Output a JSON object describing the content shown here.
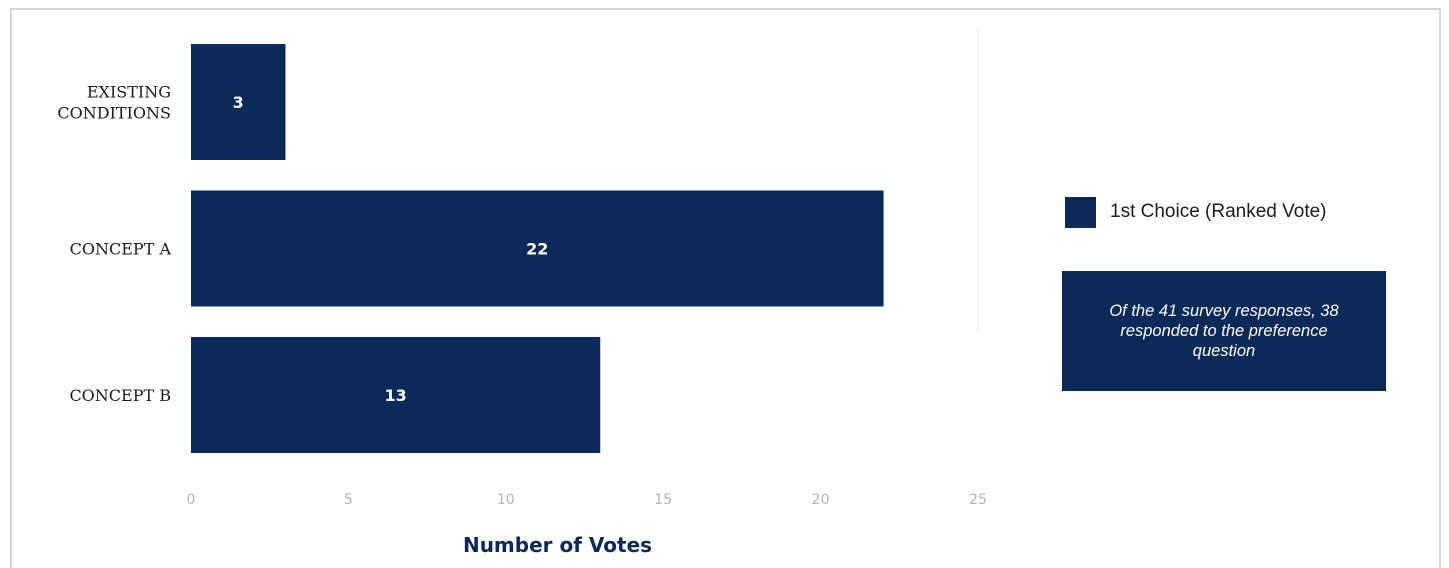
{
  "chart_data": {
    "type": "bar",
    "orientation": "horizontal",
    "categories": [
      "EXISTING CONDITIONS",
      "CONCEPT A",
      "CONCEPT B"
    ],
    "category_lines": [
      [
        "EXISTING",
        "CONDITIONS"
      ],
      [
        "CONCEPT A"
      ],
      [
        "CONCEPT B"
      ]
    ],
    "series": [
      {
        "name": "1st Choice (Ranked Vote)",
        "values": [
          3,
          22,
          13
        ]
      }
    ],
    "data_labels": [
      "3",
      "22",
      "13"
    ],
    "xlabel": "Number of Votes",
    "ylabel": "",
    "xlim": [
      0,
      25
    ],
    "x_ticks": [
      "0",
      "5",
      "10",
      "15",
      "20",
      "25"
    ],
    "grid": false,
    "legend": "right",
    "colors": {
      "bar": "#0b2a5a",
      "bar_text": "#ffffff",
      "axis_title": "#0b2a5a"
    }
  },
  "legend": {
    "label": "1st Choice (Ranked Vote)"
  },
  "note": {
    "text": "Of the 41 survey responses, 38 responded to the preference question"
  }
}
